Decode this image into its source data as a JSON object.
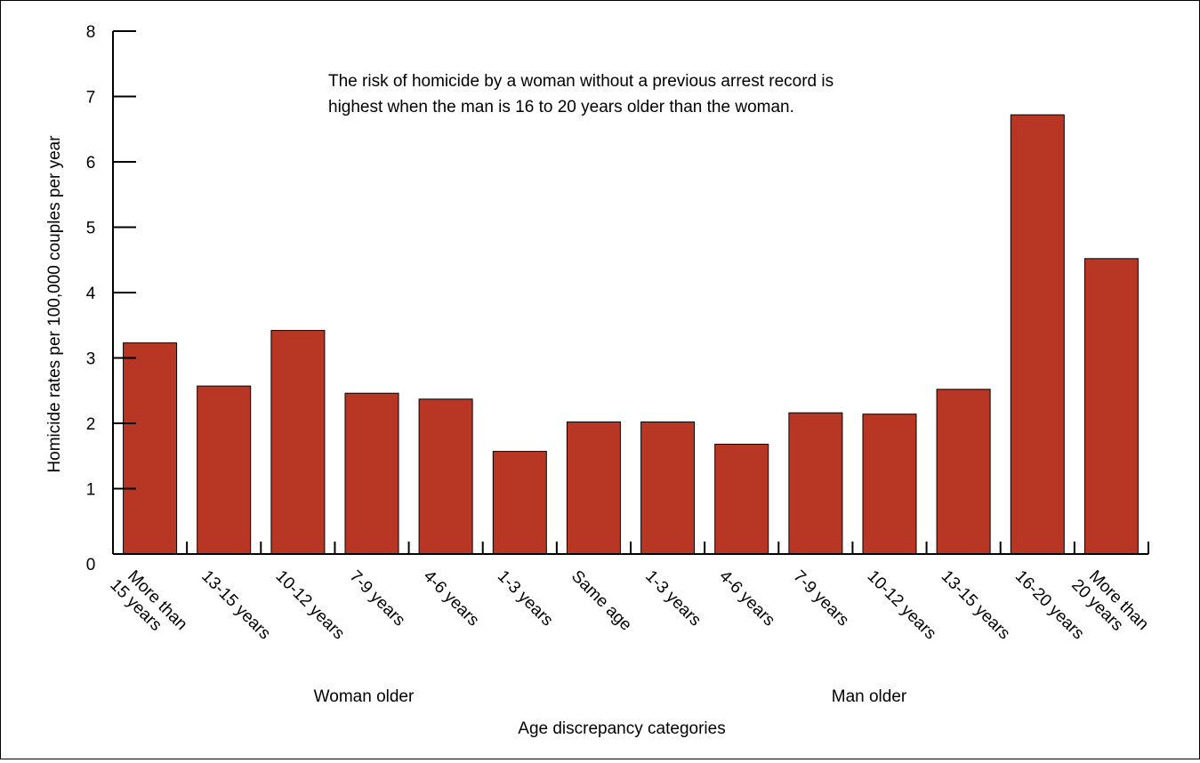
{
  "chart_data": {
    "type": "bar",
    "title": "",
    "xlabel": "Age discrepancy categories",
    "ylabel": "Homicide rates per 100,000 couples per year",
    "ylim": [
      0,
      8
    ],
    "yticks": [
      "0",
      "1",
      "2",
      "3",
      "4",
      "5",
      "6",
      "7",
      "8"
    ],
    "categories": [
      [
        "More than",
        "15 years"
      ],
      [
        "13-15 years"
      ],
      [
        "10-12 years"
      ],
      [
        "7-9 years"
      ],
      [
        "4-6 years"
      ],
      [
        "1-3 years"
      ],
      [
        "Same age"
      ],
      [
        "1-3 years"
      ],
      [
        "4-6 years"
      ],
      [
        "7-9 years"
      ],
      [
        "10-12 years"
      ],
      [
        "13-15 years"
      ],
      [
        "16-20 years"
      ],
      [
        "More than",
        "20 years"
      ]
    ],
    "values": [
      3.23,
      2.57,
      3.42,
      2.46,
      2.37,
      1.57,
      2.02,
      2.02,
      1.68,
      2.16,
      2.14,
      2.52,
      6.72,
      4.52
    ],
    "bar_color": "#b83724",
    "group_labels": [
      "Woman older",
      "Man older"
    ],
    "annotation": "The risk of homicide by a woman without a previous arrest record is highest when the man is 16 to 20 years older than the woman.",
    "grid": false,
    "legend": "none"
  }
}
